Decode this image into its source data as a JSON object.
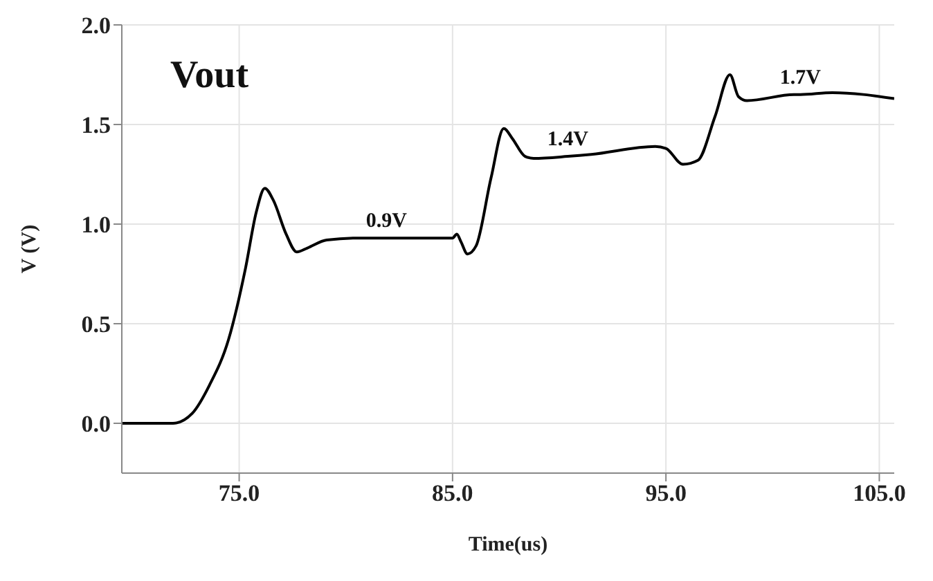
{
  "chart_data": {
    "type": "line",
    "title": "Vout",
    "xlabel": "Time(us)",
    "ylabel": "V (V)",
    "x": [
      69.5,
      71.9,
      72.8,
      73.6,
      74.5,
      75.3,
      75.8,
      76.2,
      76.6,
      77.2,
      77.7,
      78.2,
      79.1,
      80.7,
      81.9,
      83.4,
      85.0,
      85.2,
      85.4,
      85.7,
      86.1,
      86.8,
      87.4,
      87.8,
      88.4,
      88.8,
      90.4,
      91.5,
      94.5,
      95.0,
      95.8,
      96.5,
      97.3,
      98.0,
      98.4,
      98.8,
      101.0,
      101.3,
      102.8,
      105.7
    ],
    "series": [
      {
        "color": "#000000",
        "values": [
          0,
          0,
          0.05,
          0.19,
          0.42,
          0.78,
          1.06,
          1.18,
          1.12,
          0.95,
          0.86,
          0.88,
          0.92,
          0.93,
          0.93,
          0.93,
          0.93,
          0.95,
          0.91,
          0.85,
          0.89,
          1.23,
          1.48,
          1.43,
          1.34,
          1.33,
          1.34,
          1.35,
          1.39,
          1.38,
          1.3,
          1.32,
          1.54,
          1.75,
          1.64,
          1.62,
          1.65,
          1.65,
          1.66,
          1.63
        ]
      }
    ],
    "xlim": [
      69.5,
      105.7
    ],
    "ylim": [
      -0.25,
      2.0
    ],
    "xticks": [
      {
        "value": 75,
        "label": "75.0"
      },
      {
        "value": 85,
        "label": "85.0"
      },
      {
        "value": 95,
        "label": "95.0"
      },
      {
        "value": 105,
        "label": "105.0"
      }
    ],
    "yticks": [
      {
        "value": 0,
        "label": "0.0"
      },
      {
        "value": 0.5,
        "label": "0.5"
      },
      {
        "value": 1,
        "label": "1.0"
      },
      {
        "value": 1.5,
        "label": "1.5"
      },
      {
        "value": 2,
        "label": "2.0"
      }
    ],
    "annotations": [
      {
        "text": "0.9V",
        "x": 81.9,
        "y": 0.93
      },
      {
        "text": "1.4V",
        "x": 90.4,
        "y": 1.34
      },
      {
        "text": "1.7V",
        "x": 101.3,
        "y": 1.65
      }
    ],
    "grid": true,
    "legend": false,
    "marker": "none",
    "line_style": "solid"
  }
}
